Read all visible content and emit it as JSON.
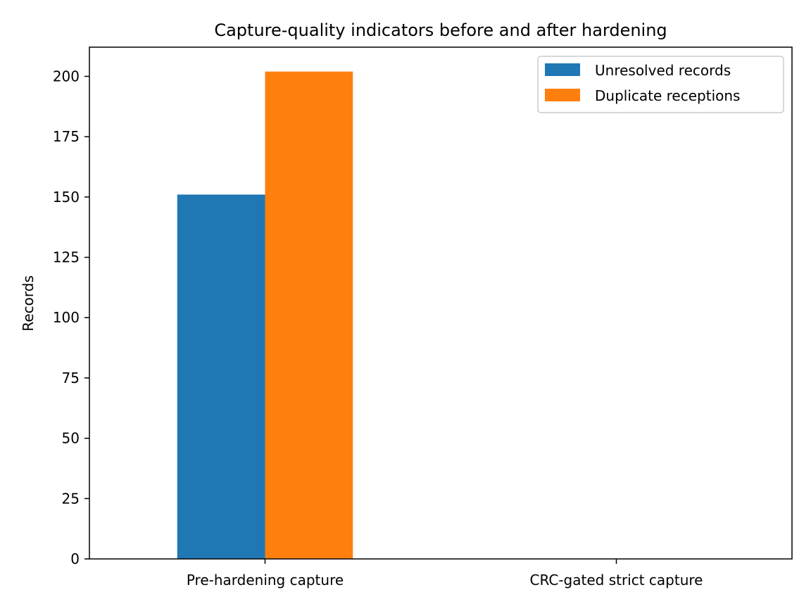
{
  "chart_data": {
    "type": "bar",
    "title": "Capture-quality indicators before and after hardening",
    "xlabel": "",
    "ylabel": "Records",
    "categories": [
      "Pre-hardening capture",
      "CRC-gated strict capture"
    ],
    "series": [
      {
        "name": "Unresolved records",
        "values": [
          151,
          0
        ],
        "color": "#1f77b4"
      },
      {
        "name": "Duplicate receptions",
        "values": [
          202,
          0
        ],
        "color": "#ff7f0e"
      }
    ],
    "ylim": [
      0,
      212.1
    ],
    "yticks": [
      0,
      25,
      50,
      75,
      100,
      125,
      150,
      175,
      200
    ],
    "ytick_labels": [
      "0",
      "25",
      "50",
      "75",
      "100",
      "125",
      "150",
      "175",
      "200"
    ],
    "grid": false,
    "legend_position": "upper right"
  }
}
